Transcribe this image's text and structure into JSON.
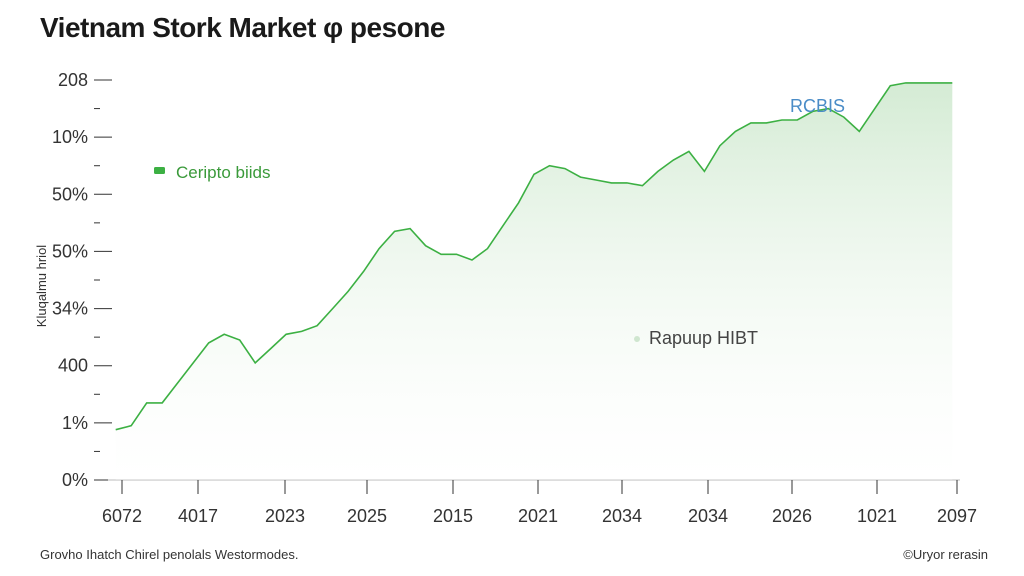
{
  "title": "Vietnam Stork Market φ pesone",
  "footer_left": "Grovho Ihatch Chirel penolals Westormodes.",
  "footer_right": "©Uryor rerasin",
  "chart_data": {
    "type": "area",
    "title": "Vietnam Stork Market φ pesone",
    "ylabel": "Kluqalmu hriol",
    "xlabel": "",
    "y_ticks": [
      "208",
      "10%",
      "50%",
      "50%",
      "34%",
      "400",
      "1%",
      "0%"
    ],
    "x_ticks": [
      "6072",
      "4017",
      "2023",
      "2025",
      "2015",
      "2021",
      "2034",
      "2034",
      "2026",
      "1021",
      "2097"
    ],
    "grid": false,
    "legend": {
      "position": "top-left",
      "entries": [
        {
          "label": "Ceripto biids",
          "color": "#3cb043"
        }
      ]
    },
    "annotations": [
      {
        "text": "RCBIS",
        "color": "#4a8cc7",
        "x": 10.1,
        "y": 6.5
      },
      {
        "text": "Rapuup HIBT",
        "color": "#444444",
        "x": 6.2,
        "y": 2.5
      }
    ],
    "series": [
      {
        "line_color": "#3cb043",
        "fill_color": "#d8efd8",
        "x": [
          0.1,
          0.3,
          0.5,
          0.7,
          0.9,
          1.1,
          1.3,
          1.5,
          1.7,
          1.9,
          2.1,
          2.3,
          2.5,
          2.7,
          2.9,
          3.1,
          3.3,
          3.5,
          3.7,
          3.9,
          4.1,
          4.3,
          4.5,
          4.7,
          4.9,
          5.1,
          5.3,
          5.5,
          5.7,
          5.9,
          6.1,
          6.3,
          6.5,
          6.7,
          6.9,
          7.1,
          7.3,
          7.5,
          7.7,
          7.9,
          8.1,
          8.3,
          8.5,
          8.7,
          8.9,
          9.1,
          9.3,
          9.5,
          9.7,
          9.9,
          10.1,
          10.3,
          10.5,
          10.7,
          10.9
        ],
        "y": [
          0.88,
          0.95,
          1.35,
          1.35,
          1.7,
          2.05,
          2.4,
          2.55,
          2.45,
          2.05,
          2.3,
          2.55,
          2.6,
          2.7,
          3.0,
          3.3,
          3.65,
          4.05,
          4.35,
          4.4,
          4.1,
          3.95,
          3.95,
          3.85,
          4.05,
          4.45,
          4.85,
          5.35,
          5.5,
          5.45,
          5.3,
          5.25,
          5.2,
          5.2,
          5.15,
          5.4,
          5.6,
          5.75,
          5.4,
          5.85,
          6.1,
          6.25,
          6.25,
          6.3,
          6.3,
          6.45,
          6.5,
          6.35,
          6.1,
          6.5,
          6.9,
          6.95,
          6.95,
          6.95,
          6.95
        ]
      }
    ],
    "xlim": [
      0,
      11
    ],
    "ylim": [
      0,
      7
    ]
  }
}
